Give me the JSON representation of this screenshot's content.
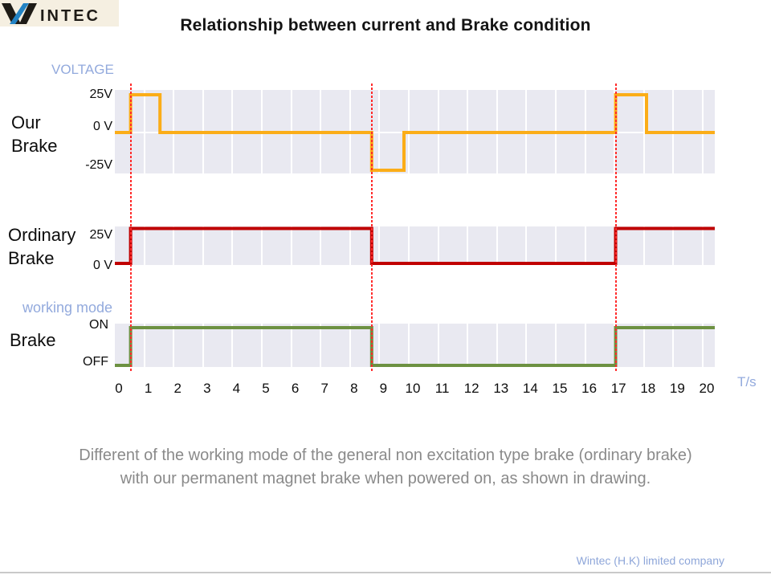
{
  "logo": {
    "brand_w": "W",
    "brand_rest": "INTEC"
  },
  "title": "Relationship between current and Brake condition",
  "labels": {
    "our_brake_line1": "Our",
    "our_brake_line2": "Brake",
    "ordinary_line1": "Ordinary",
    "ordinary_line2": "Brake",
    "brake": "Brake"
  },
  "colors": {
    "our_brake_wave": "#fbad18",
    "ordinary_brake_wave": "#c00000",
    "brake_mode_wave": "#6d9142",
    "plot_background": "#e9e9f1",
    "event_marker": "#ff2b2b",
    "accent_text": "#93aadd",
    "description_text": "#8a8a8a"
  },
  "description": {
    "line1": "Different of the working mode of the general non excitation type brake (ordinary brake)",
    "line2": "with our permanent magnet brake when powered on, as shown in drawing."
  },
  "footer": "Wintec (H.K) limited company",
  "chart_data": {
    "type": "line",
    "subtype": "step-timing-diagram",
    "title": "Relationship between current and Brake condition",
    "xlabel": "T/s",
    "x_ticks": [
      "0",
      "1",
      "2",
      "3",
      "4",
      "5",
      "6",
      "7",
      "8",
      "9",
      "10",
      "11",
      "12",
      "13",
      "14",
      "15",
      "16",
      "17",
      "18",
      "19",
      "20"
    ],
    "xlim": [
      0,
      20
    ],
    "grid": true,
    "event_markers_t": [
      0.4,
      8.6,
      16.9
    ],
    "panels": [
      {
        "label": "Our Brake",
        "y_axis_title": "VOLTAGE",
        "y_levels": [
          "25V",
          "0 V",
          "-25V"
        ],
        "color": "#fbad18",
        "segments": [
          {
            "from": 0,
            "to": 0.4,
            "value": 0
          },
          {
            "from": 0.4,
            "to": 1.4,
            "value": 25
          },
          {
            "from": 1.4,
            "to": 8.6,
            "value": 0
          },
          {
            "from": 8.6,
            "to": 9.7,
            "value": -25
          },
          {
            "from": 9.7,
            "to": 16.9,
            "value": 0
          },
          {
            "from": 16.9,
            "to": 17.95,
            "value": 25
          },
          {
            "from": 17.95,
            "to": 20,
            "value": 0
          }
        ]
      },
      {
        "label": "Ordinary Brake",
        "y_axis_title": "",
        "y_levels": [
          "25V",
          "0 V"
        ],
        "color": "#c00000",
        "segments": [
          {
            "from": 0,
            "to": 0.4,
            "value": 0
          },
          {
            "from": 0.4,
            "to": 8.6,
            "value": 25
          },
          {
            "from": 8.6,
            "to": 16.9,
            "value": 0
          },
          {
            "from": 16.9,
            "to": 20,
            "value": 25
          }
        ]
      },
      {
        "label": "Brake",
        "y_axis_title": "working mode",
        "y_levels": [
          "ON",
          "OFF"
        ],
        "color": "#6d9142",
        "segments": [
          {
            "from": 0,
            "to": 0.4,
            "value": "OFF"
          },
          {
            "from": 0.4,
            "to": 8.6,
            "value": "ON"
          },
          {
            "from": 8.6,
            "to": 16.9,
            "value": "OFF"
          },
          {
            "from": 16.9,
            "to": 20,
            "value": "ON"
          }
        ]
      }
    ]
  }
}
